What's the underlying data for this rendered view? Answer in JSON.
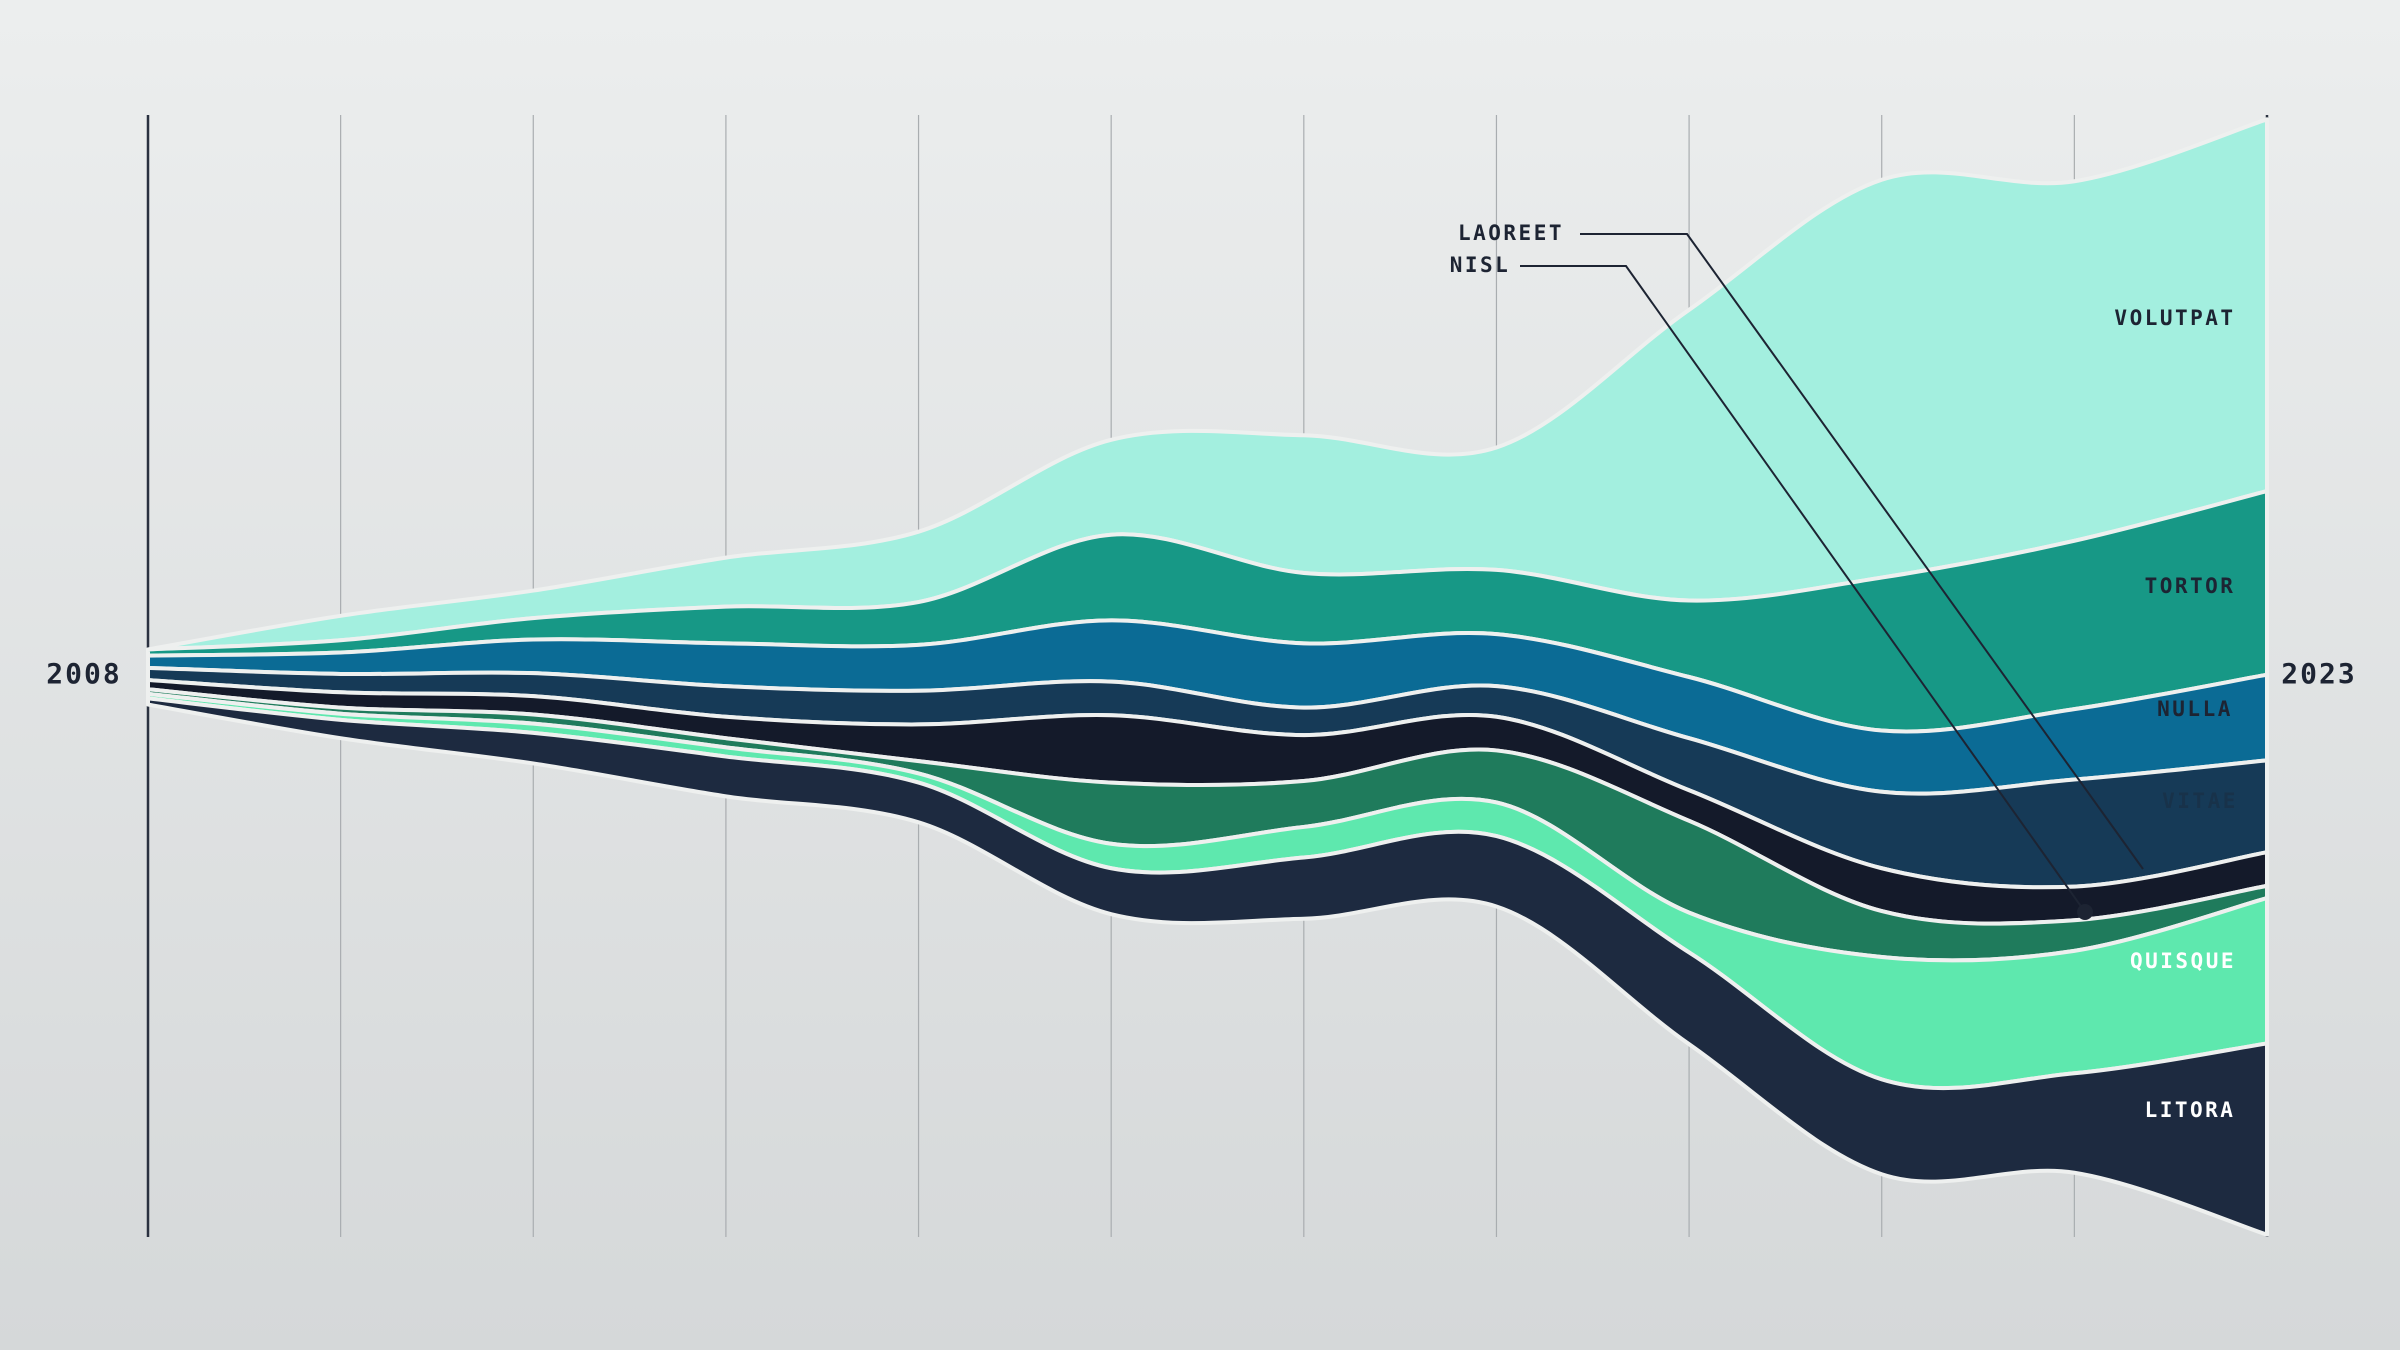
{
  "chart_data": {
    "type": "streamgraph",
    "categories": [
      "2008",
      null,
      null,
      null,
      null,
      null,
      null,
      null,
      null,
      null,
      null,
      "2023"
    ],
    "series": [
      {
        "name": "VOLUTPAT",
        "color": "#a3efdf",
        "values": [
          0,
          16,
          18,
          32,
          46,
          62,
          90,
          80,
          190,
          260,
          235,
          243
        ]
      },
      {
        "name": "TORTOR",
        "color": "#179886",
        "values": [
          4,
          8,
          14,
          24,
          28,
          56,
          46,
          42,
          50,
          100,
          110,
          120
        ]
      },
      {
        "name": "NULLA",
        "color": "#0b6b95",
        "values": [
          8,
          14,
          22,
          28,
          30,
          40,
          42,
          34,
          40,
          40,
          46,
          56
        ]
      },
      {
        "name": "VITAE",
        "color": "#163a57",
        "values": [
          8,
          12,
          15,
          20,
          22,
          22,
          18,
          20,
          34,
          50,
          70,
          60
        ]
      },
      {
        "name": "LAOREET",
        "color": "#141a2a",
        "values": [
          6,
          10,
          12,
          14,
          24,
          44,
          30,
          22,
          20,
          28,
          22,
          22
        ]
      },
      {
        "name": "NISL",
        "color": "#1f7b5c",
        "values": [
          3,
          4,
          6,
          6,
          8,
          40,
          30,
          34,
          60,
          30,
          20,
          8
        ]
      },
      {
        "name": "QUISQUE",
        "color": "#5ee8ae",
        "values": [
          3,
          4,
          6,
          6,
          6,
          16,
          20,
          22,
          26,
          80,
          80,
          95
        ]
      },
      {
        "name": "LITORA",
        "color": "#1d2a40",
        "values": [
          4,
          12,
          20,
          26,
          26,
          30,
          40,
          46,
          60,
          62,
          65,
          125
        ]
      }
    ]
  }
}
